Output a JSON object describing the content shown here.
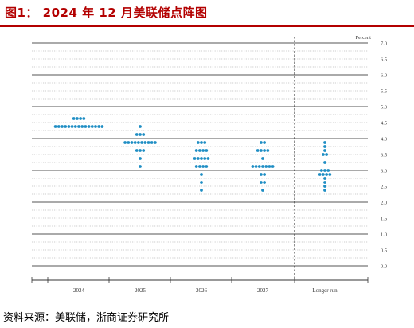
{
  "title": "图1： 2024 年 12 月美联储点阵图",
  "source": "资料来源：美联储，浙商证券研究所",
  "colors": {
    "title": "#b30000",
    "dot": "#1f8ec4"
  },
  "chart_data": {
    "type": "scatter",
    "subtype": "dot-plot",
    "ylabel": "Percent",
    "ylim": [
      0,
      7
    ],
    "ytick_step": 0.5,
    "yticks": [
      "0.0",
      "0.5",
      "1.0",
      "1.5",
      "2.0",
      "2.5",
      "3.0",
      "3.5",
      "4.0",
      "4.5",
      "5.0",
      "5.5",
      "6.0",
      "6.5",
      "7.0"
    ],
    "categories": [
      "2024",
      "2025",
      "2026",
      "2027",
      "Longer run"
    ],
    "grid": true,
    "series": [
      {
        "category": "2024",
        "dots": [
          {
            "y": 4.625,
            "count": 4
          },
          {
            "y": 4.375,
            "count": 15
          }
        ]
      },
      {
        "category": "2025",
        "dots": [
          {
            "y": 4.375,
            "count": 1
          },
          {
            "y": 4.125,
            "count": 3
          },
          {
            "y": 3.875,
            "count": 10
          },
          {
            "y": 3.625,
            "count": 3
          },
          {
            "y": 3.375,
            "count": 1
          },
          {
            "y": 3.125,
            "count": 1
          }
        ]
      },
      {
        "category": "2026",
        "dots": [
          {
            "y": 3.875,
            "count": 3
          },
          {
            "y": 3.625,
            "count": 4
          },
          {
            "y": 3.375,
            "count": 5
          },
          {
            "y": 3.125,
            "count": 4
          },
          {
            "y": 2.875,
            "count": 1
          },
          {
            "y": 2.625,
            "count": 1
          },
          {
            "y": 2.375,
            "count": 1
          }
        ]
      },
      {
        "category": "2027",
        "dots": [
          {
            "y": 3.875,
            "count": 2
          },
          {
            "y": 3.625,
            "count": 4
          },
          {
            "y": 3.375,
            "count": 1
          },
          {
            "y": 3.125,
            "count": 7
          },
          {
            "y": 2.875,
            "count": 2
          },
          {
            "y": 2.625,
            "count": 2
          },
          {
            "y": 2.375,
            "count": 1
          }
        ]
      },
      {
        "category": "Longer run",
        "dots": [
          {
            "y": 3.875,
            "count": 1
          },
          {
            "y": 3.75,
            "count": 1
          },
          {
            "y": 3.625,
            "count": 1
          },
          {
            "y": 3.5,
            "count": 2
          },
          {
            "y": 3.25,
            "count": 1
          },
          {
            "y": 3.0,
            "count": 3
          },
          {
            "y": 2.875,
            "count": 4
          },
          {
            "y": 2.75,
            "count": 1
          },
          {
            "y": 2.625,
            "count": 1
          },
          {
            "y": 2.5,
            "count": 1
          },
          {
            "y": 2.375,
            "count": 1
          }
        ]
      }
    ]
  }
}
